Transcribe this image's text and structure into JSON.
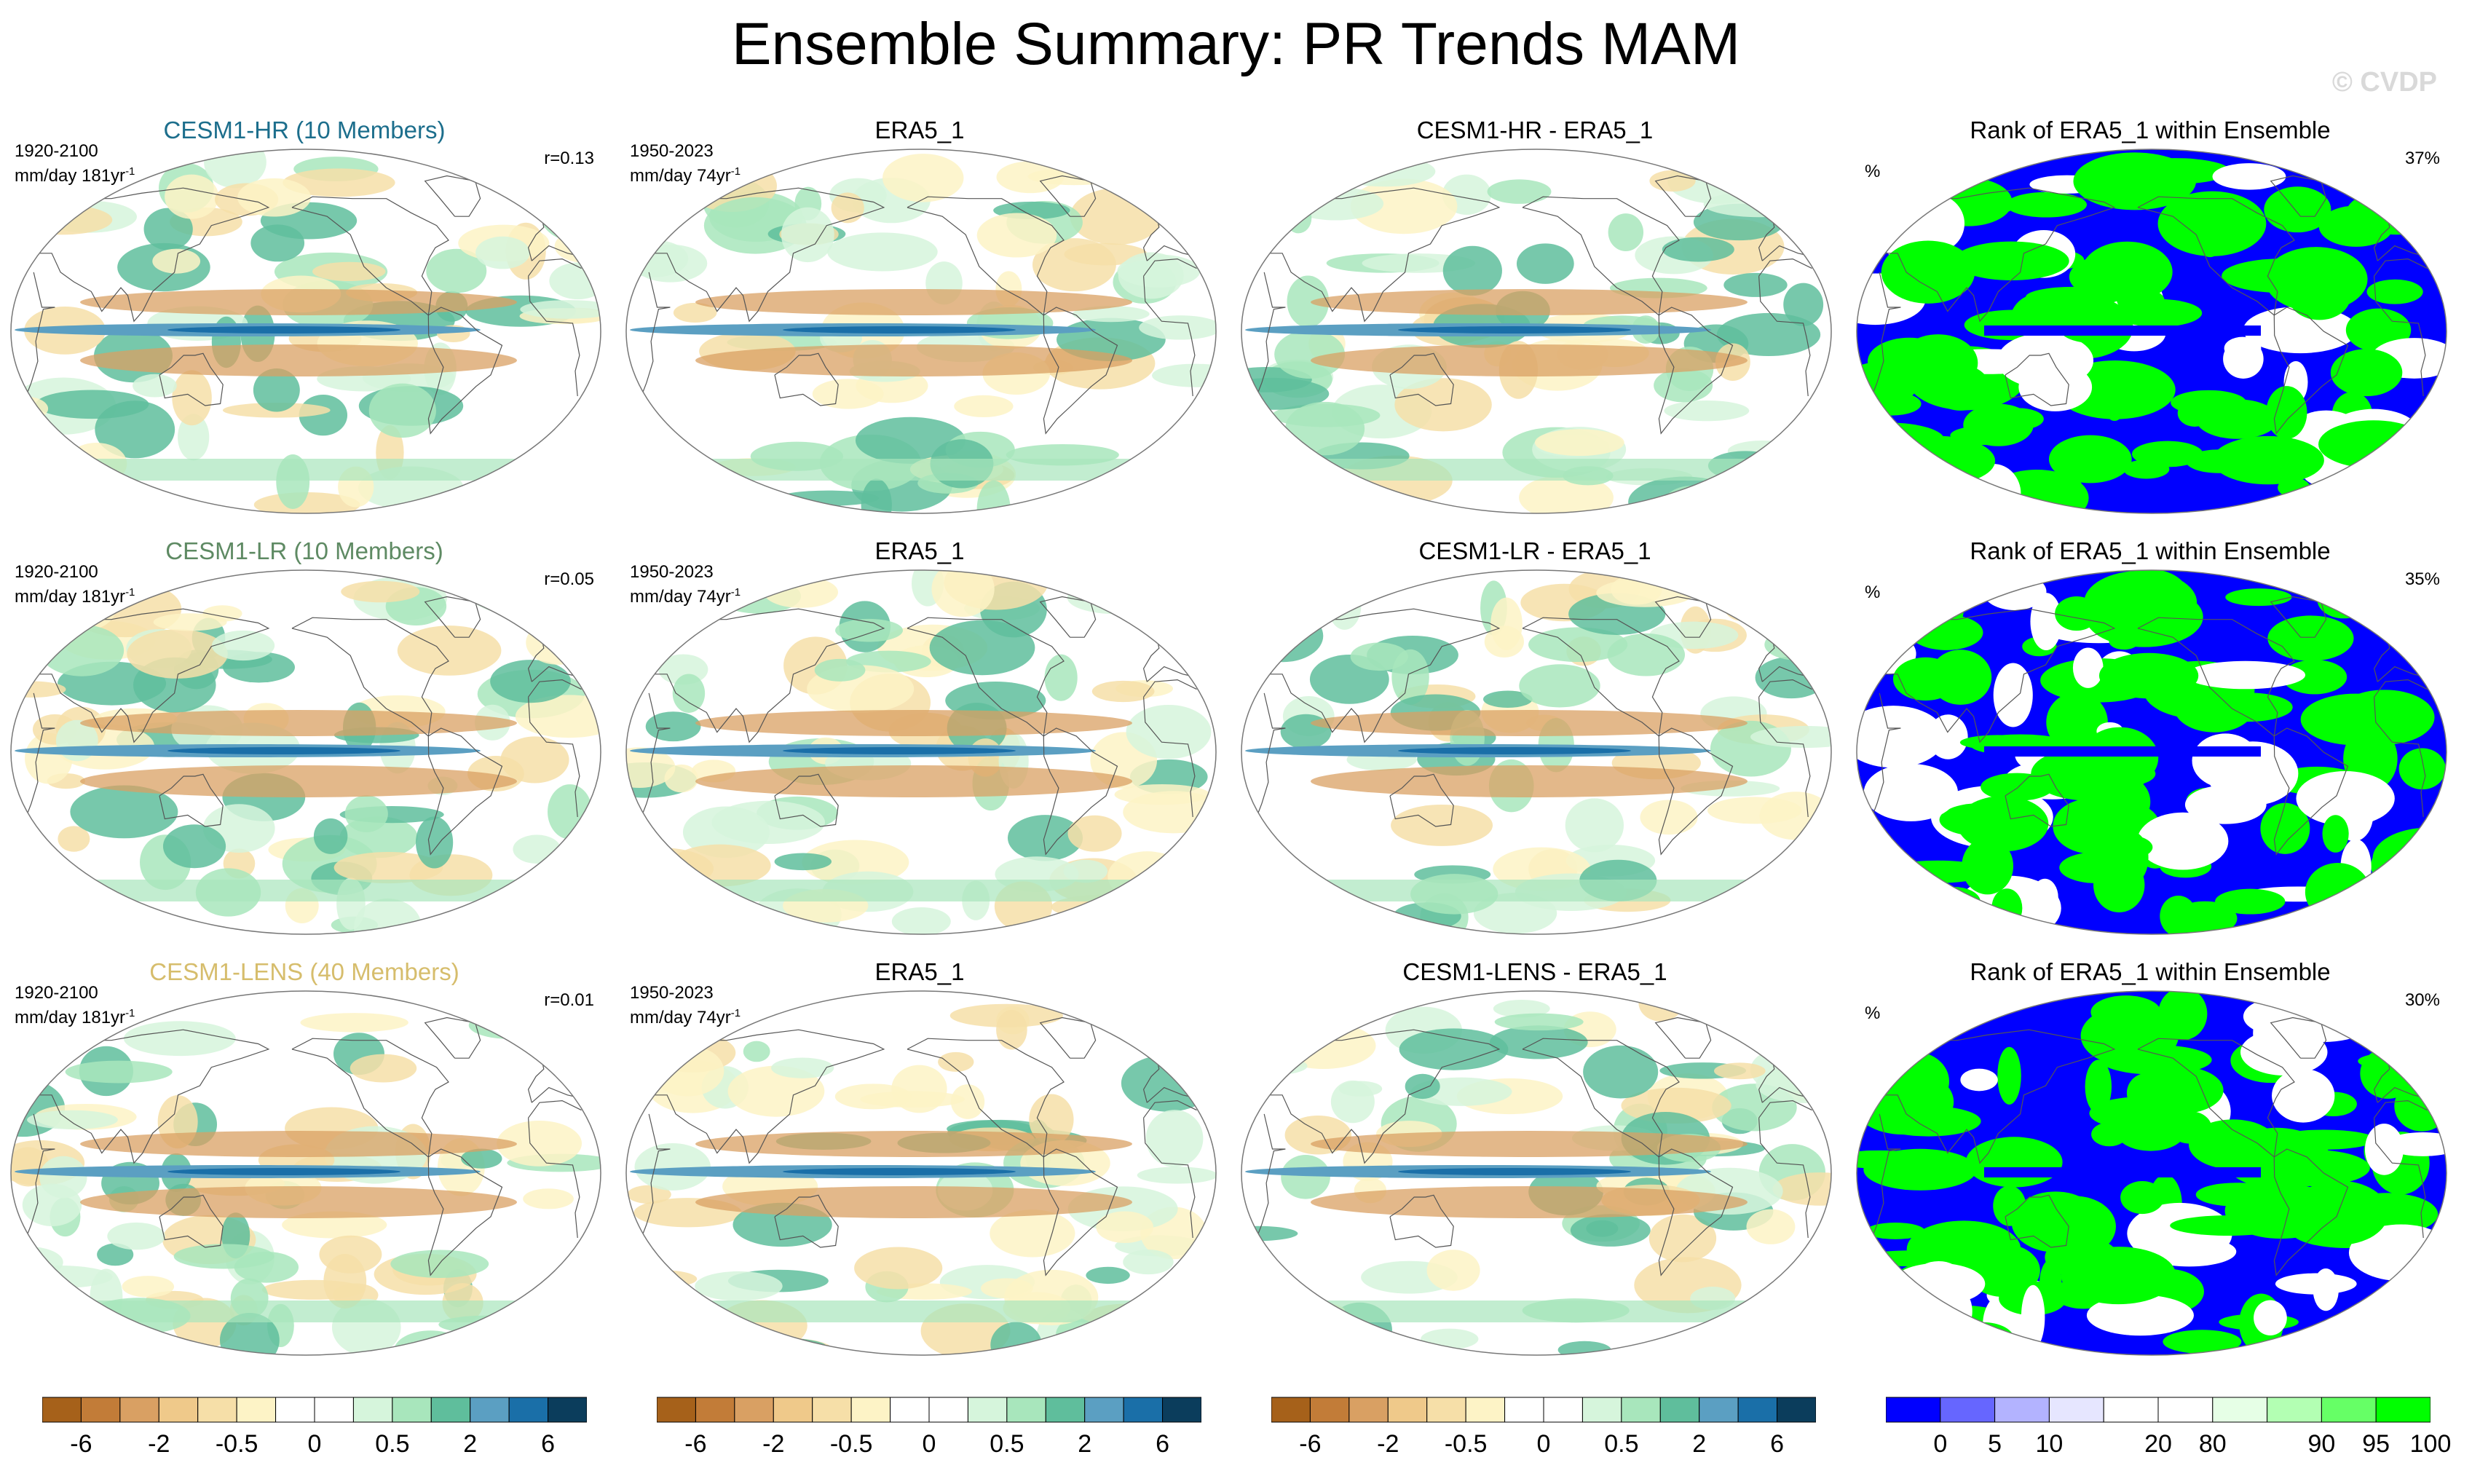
{
  "title": "Ensemble Summary: PR Trends MAM",
  "watermark": "© CVDP",
  "rows": [
    {
      "model": {
        "title": "CESM1-HR (10 Members)",
        "title_color": "#1c6e8c",
        "period": "1920-2100",
        "units": "mm/day 181yr",
        "units_sup": "-1",
        "corr": "r=0.13"
      },
      "obs": {
        "title": "ERA5_1",
        "period": "1950-2023",
        "units": "mm/day 74yr",
        "units_sup": "-1"
      },
      "diff": {
        "title": "CESM1-HR - ERA5_1"
      },
      "rank": {
        "title": "Rank of ERA5_1 within Ensemble",
        "unit": "%",
        "pct": "37%"
      }
    },
    {
      "model": {
        "title": "CESM1-LR (10 Members)",
        "title_color": "#5e8a63",
        "period": "1920-2100",
        "units": "mm/day 181yr",
        "units_sup": "-1",
        "corr": "r=0.05"
      },
      "obs": {
        "title": "ERA5_1",
        "period": "1950-2023",
        "units": "mm/day 74yr",
        "units_sup": "-1"
      },
      "diff": {
        "title": "CESM1-LR - ERA5_1"
      },
      "rank": {
        "title": "Rank of ERA5_1 within Ensemble",
        "unit": "%",
        "pct": "35%"
      }
    },
    {
      "model": {
        "title": "CESM1-LENS (40 Members)",
        "title_color": "#d6bd6c",
        "period": "1920-2100",
        "units": "mm/day 181yr",
        "units_sup": "-1",
        "corr": "r=0.01"
      },
      "obs": {
        "title": "ERA5_1",
        "period": "1950-2023",
        "units": "mm/day 74yr",
        "units_sup": "-1"
      },
      "diff": {
        "title": "CESM1-LENS - ERA5_1"
      },
      "rank": {
        "title": "Rank of ERA5_1 within Ensemble",
        "unit": "%",
        "pct": "30%"
      }
    }
  ],
  "trend_colorbar": {
    "colors": [
      "#a6611a",
      "#c27c38",
      "#d9a063",
      "#efc98a",
      "#f6dfa8",
      "#fdf3c6",
      "#ffffff",
      "#ffffff",
      "#d6f5dc",
      "#a8e6bc",
      "#5fbe9c",
      "#5b9fc2",
      "#1a6fa8",
      "#0b3d5c"
    ],
    "labels": [
      "-6",
      "-2",
      "-0.5",
      "0",
      "0.5",
      "2",
      "6"
    ]
  },
  "rank_colorbar": {
    "colors": [
      "#0000ff",
      "#6666ff",
      "#b3b3ff",
      "#e6e6ff",
      "#ffffff",
      "#ffffff",
      "#e6ffe6",
      "#b3ffb3",
      "#66ff66",
      "#00ff00"
    ],
    "labels": [
      "0",
      "5",
      "10",
      "20",
      "80",
      "90",
      "95",
      "100"
    ]
  }
}
